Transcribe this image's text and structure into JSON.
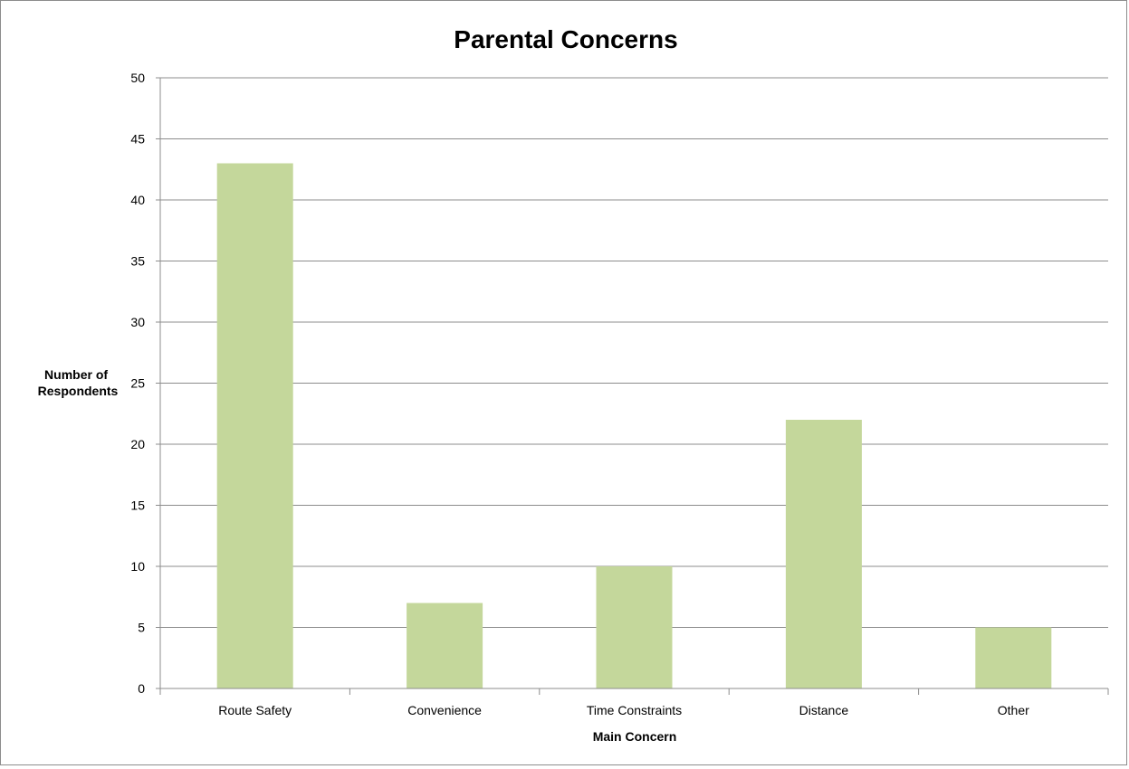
{
  "chart_data": {
    "type": "bar",
    "title": "Parental Concerns",
    "xlabel": "Main Concern",
    "ylabel_lines": [
      "Number of",
      "Respondents"
    ],
    "categories": [
      "Route Safety",
      "Convenience",
      "Time Constraints",
      "Distance",
      "Other"
    ],
    "values": [
      43,
      7,
      10,
      22,
      5
    ],
    "ylim": [
      0,
      50
    ],
    "yticks": [
      0,
      5,
      10,
      15,
      20,
      25,
      30,
      35,
      40,
      45,
      50
    ],
    "grid": true,
    "legend": "none",
    "bar_color": "#c4d79b"
  }
}
